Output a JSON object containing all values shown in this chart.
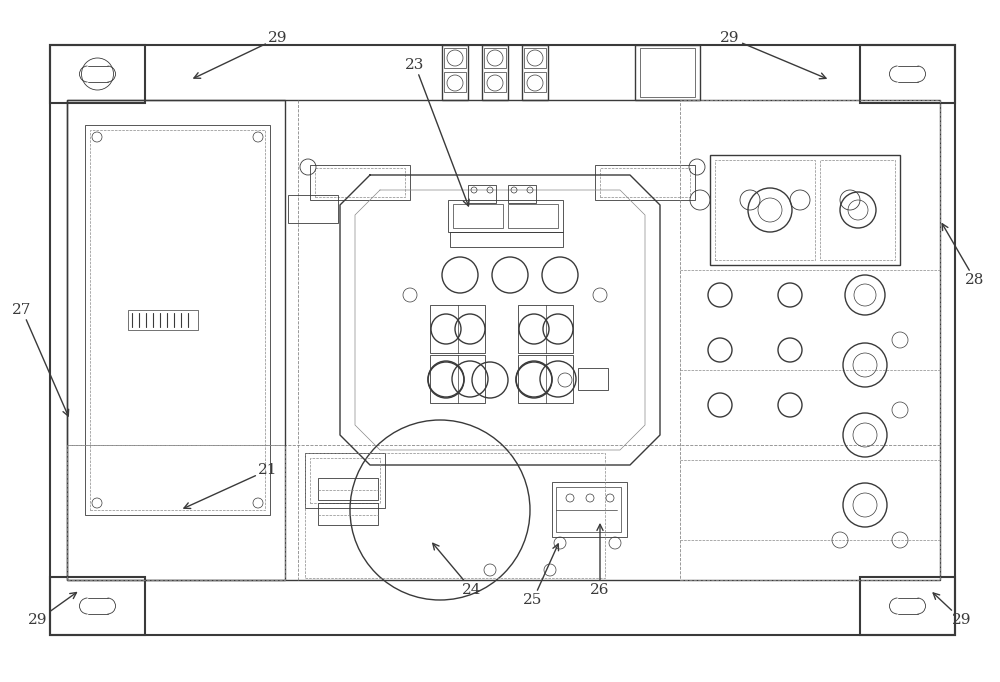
{
  "bg_color": "#ffffff",
  "lc": "#3a3a3a",
  "dc": "#888888",
  "fig_width": 10.0,
  "fig_height": 6.82,
  "dpi": 100
}
